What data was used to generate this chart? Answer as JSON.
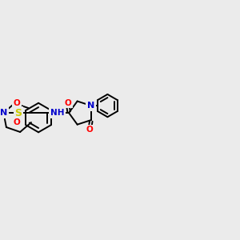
{
  "bg_color": "#ebebeb",
  "fig_size": [
    3.0,
    3.0
  ],
  "dpi": 100,
  "line_color": "#000000",
  "lw": 1.4,
  "atom_colors": {
    "N": "#0000cc",
    "O": "#ff0000",
    "S": "#cccc00",
    "H": "#000000",
    "C": "#000000"
  },
  "xlim": [
    0,
    10
  ],
  "ylim": [
    2,
    8
  ]
}
